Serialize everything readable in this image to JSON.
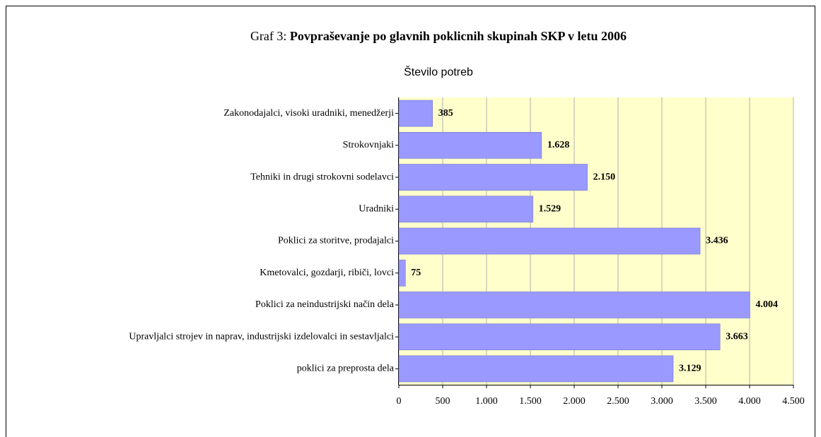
{
  "chart_data": {
    "type": "bar",
    "orientation": "horizontal",
    "title_label": "Graf 3:",
    "title": "Povpraševanje po glavnih poklicnih skupinah SKP  v letu 2006",
    "subtitle": "Število potreb",
    "categories": [
      "Zakonodajalci, visoki uradniki, menedžerji",
      "Strokovnjaki",
      "Tehniki in drugi strokovni sodelavci",
      "Uradniki",
      "Poklici za storitve, prodajalci",
      "Kmetovalci, gozdarji, ribiči, lovci",
      "Poklici za neindustrijski način dela",
      "Upravljalci strojev in naprav, industrijski izdelovalci in sestavljalci",
      "poklici za preprosta dela"
    ],
    "values": [
      385,
      1628,
      2150,
      1529,
      3436,
      75,
      4004,
      3663,
      3129
    ],
    "value_labels": [
      "385",
      "1.628",
      "2.150",
      "1.529",
      "3.436",
      "75",
      "4.004",
      "3.663",
      "3.129"
    ],
    "color": "#9999ff",
    "background": "#ffffcc",
    "xlim": [
      0,
      4500
    ],
    "xticks": [
      0,
      500,
      {
        "value": 1000,
        "label": "1.000"
      },
      {
        "value": 1500,
        "label": "1.500"
      },
      {
        "value": 2000,
        "label": "2.000"
      },
      {
        "value": 2500,
        "label": "2.500"
      },
      {
        "value": 3000,
        "label": "3.000"
      },
      {
        "value": 3500,
        "label": "3.500"
      },
      {
        "value": 4000,
        "label": "4.000"
      },
      {
        "value": 4500,
        "label": "4.500"
      }
    ],
    "grid": true
  }
}
